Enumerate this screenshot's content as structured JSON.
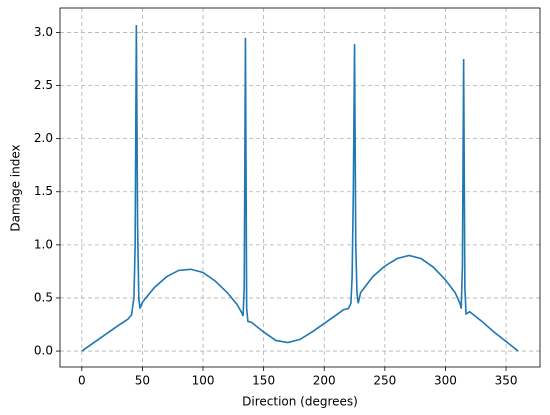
{
  "chart_data": {
    "type": "line",
    "x_label": "Direction (degrees)",
    "y_label": "Damage index",
    "x": [
      0,
      10,
      20,
      30,
      38,
      41,
      43,
      44,
      45,
      46,
      47,
      48,
      50,
      60,
      70,
      80,
      90,
      100,
      110,
      120,
      128,
      132,
      133,
      134,
      135,
      136,
      137,
      140,
      150,
      160,
      170,
      180,
      190,
      200,
      210,
      216,
      220,
      222,
      223,
      224,
      225,
      226,
      227,
      228,
      230,
      240,
      250,
      260,
      270,
      280,
      290,
      300,
      308,
      312,
      313,
      314,
      315,
      316,
      317,
      320,
      330,
      340,
      350,
      360
    ],
    "series": [
      {
        "color": "#1f77b4",
        "values": [
          0,
          0.08,
          0.16,
          0.24,
          0.3,
          0.34,
          0.5,
          1.0,
          3.07,
          1.2,
          0.5,
          0.4,
          0.46,
          0.6,
          0.7,
          0.76,
          0.77,
          0.74,
          0.66,
          0.55,
          0.44,
          0.36,
          0.33,
          0.6,
          2.95,
          0.4,
          0.28,
          0.27,
          0.18,
          0.1,
          0.08,
          0.11,
          0.18,
          0.26,
          0.34,
          0.39,
          0.4,
          0.45,
          0.7,
          1.5,
          2.89,
          1.0,
          0.55,
          0.45,
          0.55,
          0.7,
          0.8,
          0.87,
          0.9,
          0.87,
          0.79,
          0.67,
          0.55,
          0.45,
          0.4,
          0.8,
          2.75,
          0.6,
          0.35,
          0.37,
          0.28,
          0.18,
          0.09,
          0.0
        ]
      }
    ],
    "xlim": [
      -18,
      378
    ],
    "xticks": [
      0,
      50,
      100,
      150,
      200,
      250,
      300,
      350
    ],
    "ylim": [
      -0.15,
      3.23
    ],
    "yticks": [
      {
        "value": 0,
        "label": "0.0"
      },
      0.5,
      {
        "value": 1,
        "label": "1.0"
      },
      1.5,
      {
        "value": 2,
        "label": "2.0"
      },
      2.5,
      {
        "value": 3,
        "label": "3.0"
      }
    ],
    "grid": true
  }
}
